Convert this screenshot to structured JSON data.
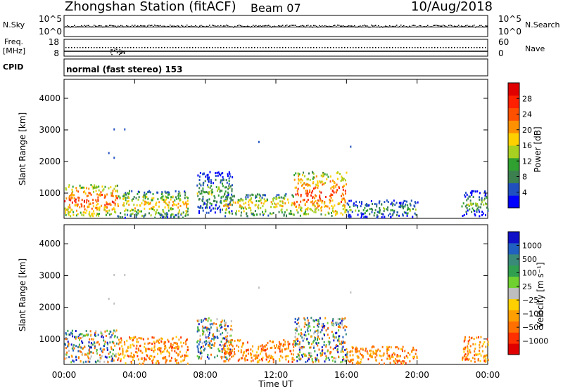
{
  "header": {
    "station": "Zhongshan Station (fitACF)",
    "beam": "Beam 07",
    "date": "10/Aug/2018"
  },
  "left_labels": {
    "nsky": "N.Sky",
    "freq_line1": "Freq.",
    "freq_line2": "[MHz]",
    "cpid": "CPID"
  },
  "right_labels": {
    "nsearch": "N.Search",
    "nave": "Nave"
  },
  "noise_panel": {
    "left_ticks": [
      "10^5",
      "10^0"
    ],
    "right_ticks": [
      "10^5",
      "10^0"
    ]
  },
  "freq_panel": {
    "left_ticks": [
      "18",
      "8"
    ],
    "right_ticks": [
      "60",
      "0"
    ]
  },
  "cpid_text": "normal (fast stereo) 153",
  "chart_data": [
    {
      "type": "heatmap",
      "name": "power",
      "ylabel": "Slant Range [km]",
      "xlabel": "",
      "ylim": [
        200,
        4600
      ],
      "yticks": [
        "1000",
        "2000",
        "3000",
        "4000"
      ],
      "colorbar": {
        "label": "Power [dB]",
        "ticks": [
          "4",
          "8",
          "12",
          "16",
          "20",
          "24",
          "28"
        ],
        "colors": [
          "#0000ff",
          "#2050c0",
          "#3c8050",
          "#30a030",
          "#a8d020",
          "#ffd000",
          "#ff9000",
          "#ff5000",
          "#ff2000",
          "#e00000"
        ]
      },
      "regions": [
        {
          "t0": 0.0,
          "t1": 3.0,
          "r0": 300,
          "r1": 1300,
          "level": "high"
        },
        {
          "t0": 3.0,
          "t1": 7.0,
          "r0": 250,
          "r1": 1100,
          "level": "mid"
        },
        {
          "t0": 7.5,
          "t1": 9.5,
          "r0": 400,
          "r1": 1700,
          "level": "low"
        },
        {
          "t0": 9.0,
          "t1": 13.0,
          "r0": 300,
          "r1": 1000,
          "level": "mid"
        },
        {
          "t0": 13.0,
          "t1": 16.0,
          "r0": 300,
          "r1": 1700,
          "level": "high"
        },
        {
          "t0": 16.0,
          "t1": 20.0,
          "r0": 250,
          "r1": 800,
          "level": "low"
        },
        {
          "t0": 22.5,
          "t1": 24.0,
          "r0": 300,
          "r1": 1100,
          "level": "low"
        }
      ]
    },
    {
      "type": "heatmap",
      "name": "velocity",
      "ylabel": "Slant Range [km]",
      "xlabel": "Time UT",
      "ylim": [
        200,
        4600
      ],
      "yticks": [
        "1000",
        "2000",
        "3000",
        "4000"
      ],
      "xticks": [
        "00:00",
        "04:00",
        "08:00",
        "12:00",
        "16:00",
        "20:00",
        "00:00"
      ],
      "colorbar": {
        "label": "Velocity [m s⁻¹]",
        "ticks": [
          "1000",
          "500",
          "100",
          "25",
          "−25",
          "−100",
          "−500",
          "−1000"
        ],
        "colors": [
          "#1010c8",
          "#2060c0",
          "#3a8a7a",
          "#30a050",
          "#70d030",
          "#bebebe",
          "#ffd000",
          "#ffa000",
          "#ff7000",
          "#ff3000",
          "#e00000"
        ]
      },
      "regions": [
        {
          "t0": 0.0,
          "t1": 3.0,
          "r0": 300,
          "r1": 1300,
          "level": "mixed"
        },
        {
          "t0": 3.0,
          "t1": 7.0,
          "r0": 250,
          "r1": 1100,
          "level": "away"
        },
        {
          "t0": 7.5,
          "t1": 9.5,
          "r0": 400,
          "r1": 1700,
          "level": "mixed"
        },
        {
          "t0": 9.0,
          "t1": 13.0,
          "r0": 300,
          "r1": 1000,
          "level": "away"
        },
        {
          "t0": 13.0,
          "t1": 16.0,
          "r0": 300,
          "r1": 1700,
          "level": "mixed"
        },
        {
          "t0": 16.0,
          "t1": 20.0,
          "r0": 250,
          "r1": 800,
          "level": "away"
        },
        {
          "t0": 22.5,
          "t1": 24.0,
          "r0": 300,
          "r1": 1100,
          "level": "away"
        }
      ]
    }
  ]
}
